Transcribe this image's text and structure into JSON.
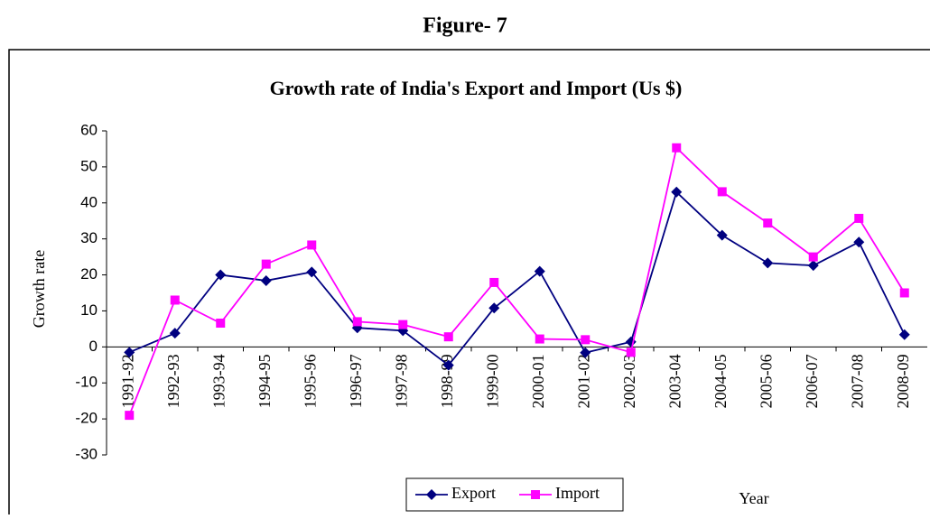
{
  "header": {
    "title": "Figure- 7"
  },
  "chart_data": {
    "type": "line",
    "title": "Growth rate of India's Export and Import (Us $)",
    "x_label": "Year",
    "y_label": "Growth rate",
    "categories": [
      "1991-92",
      "1992-93",
      "1993-94",
      "1994-95",
      "1995-96",
      "1996-97",
      "1997-98",
      "1998-99",
      "1999-00",
      "2000-01",
      "2001-02",
      "2002-03",
      "2003-04",
      "2004-05",
      "2005-06",
      "2006-07",
      "2007-08",
      "2008-09"
    ],
    "series": [
      {
        "name": "Export",
        "color": "#000080",
        "marker": "diamond",
        "values": [
          -1.5,
          3.8,
          20,
          18.4,
          20.8,
          5.3,
          4.5,
          -5.1,
          10.8,
          21,
          -1.6,
          1.4,
          43,
          31,
          23.3,
          22.6,
          29.1,
          3.4
        ]
      },
      {
        "name": "Import",
        "color": "#ff00ff",
        "marker": "square",
        "values": [
          -19,
          13,
          6.6,
          23,
          28.3,
          7,
          6.2,
          2.8,
          17.9,
          2.2,
          2,
          -1.5,
          55.3,
          43.1,
          34.4,
          25,
          35.7,
          15
        ]
      }
    ],
    "ylim": [
      -30,
      60
    ],
    "yticks": [
      -30,
      -20,
      -10,
      0,
      10,
      20,
      30,
      40,
      50,
      60
    ]
  }
}
